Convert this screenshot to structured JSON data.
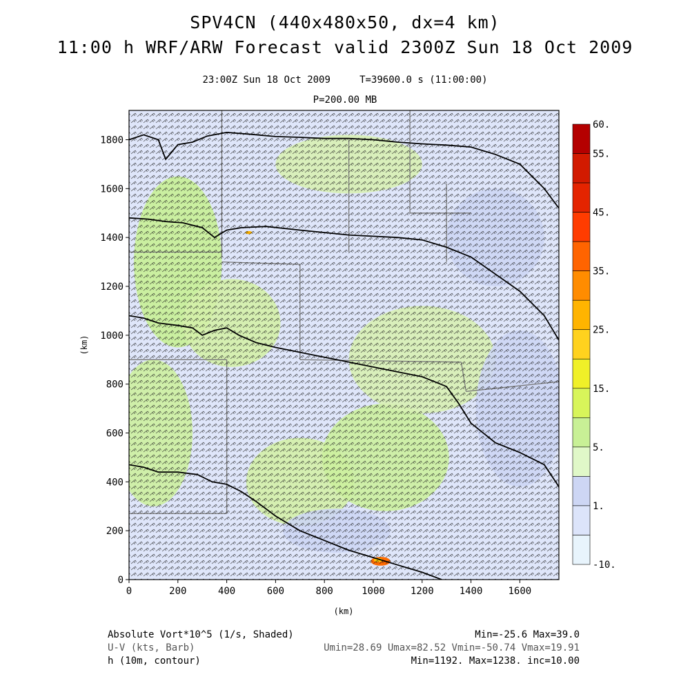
{
  "header": {
    "title_line1": "SPV4CN (440x480x50, dx=4 km)",
    "title_line2": "11:00 h WRF/ARW Forecast valid 2300Z Sun 18 Oct 2009",
    "valid_time": "23:00Z Sun 18 Oct 2009",
    "model_time": "T=39600.0 s (11:00:00)",
    "pressure_level": "P=200.00 MB"
  },
  "map": {
    "x_axis_label": "(km)",
    "y_axis_label": "(km)",
    "x_ticks": [
      "0",
      "200",
      "400",
      "600",
      "800",
      "1000",
      "1200",
      "1400",
      "1600"
    ],
    "y_ticks": [
      "0",
      "200",
      "400",
      "600",
      "800",
      "1000",
      "1200",
      "1400",
      "1600",
      "1800"
    ],
    "x_range_km": [
      0,
      1760
    ],
    "y_range_km": [
      0,
      1920
    ],
    "contours_km": [
      [
        [
          0,
          1800
        ],
        [
          60,
          1820
        ],
        [
          120,
          1800
        ],
        [
          150,
          1720
        ],
        [
          200,
          1780
        ],
        [
          260,
          1790
        ],
        [
          320,
          1815
        ],
        [
          400,
          1830
        ],
        [
          500,
          1822
        ],
        [
          600,
          1813
        ],
        [
          700,
          1810
        ],
        [
          800,
          1805
        ],
        [
          900,
          1805
        ],
        [
          1000,
          1800
        ],
        [
          1100,
          1790
        ],
        [
          1200,
          1783
        ],
        [
          1300,
          1778
        ],
        [
          1400,
          1770
        ],
        [
          1500,
          1740
        ],
        [
          1600,
          1700
        ],
        [
          1700,
          1600
        ],
        [
          1760,
          1520
        ]
      ],
      [
        [
          0,
          1480
        ],
        [
          80,
          1475
        ],
        [
          150,
          1465
        ],
        [
          220,
          1460
        ],
        [
          300,
          1440
        ],
        [
          350,
          1400
        ],
        [
          400,
          1430
        ],
        [
          460,
          1440
        ],
        [
          560,
          1445
        ],
        [
          700,
          1430
        ],
        [
          900,
          1410
        ],
        [
          1100,
          1400
        ],
        [
          1200,
          1390
        ],
        [
          1300,
          1360
        ],
        [
          1400,
          1320
        ],
        [
          1500,
          1250
        ],
        [
          1600,
          1180
        ],
        [
          1700,
          1080
        ],
        [
          1760,
          980
        ]
      ],
      [
        [
          0,
          1080
        ],
        [
          60,
          1070
        ],
        [
          120,
          1050
        ],
        [
          200,
          1040
        ],
        [
          260,
          1030
        ],
        [
          300,
          1000
        ],
        [
          350,
          1020
        ],
        [
          400,
          1030
        ],
        [
          450,
          1000
        ],
        [
          520,
          970
        ],
        [
          600,
          950
        ],
        [
          700,
          930
        ],
        [
          800,
          910
        ],
        [
          900,
          890
        ],
        [
          1000,
          870
        ],
        [
          1100,
          850
        ],
        [
          1200,
          830
        ],
        [
          1300,
          790
        ],
        [
          1350,
          720
        ],
        [
          1400,
          640
        ],
        [
          1500,
          560
        ],
        [
          1600,
          520
        ],
        [
          1700,
          470
        ],
        [
          1760,
          380
        ]
      ],
      [
        [
          0,
          470
        ],
        [
          60,
          460
        ],
        [
          120,
          440
        ],
        [
          200,
          440
        ],
        [
          280,
          430
        ],
        [
          340,
          400
        ],
        [
          400,
          390
        ],
        [
          460,
          360
        ],
        [
          520,
          320
        ],
        [
          600,
          260
        ],
        [
          700,
          200
        ],
        [
          800,
          160
        ],
        [
          900,
          120
        ],
        [
          1000,
          90
        ],
        [
          1100,
          60
        ],
        [
          1200,
          30
        ],
        [
          1280,
          0
        ]
      ]
    ],
    "borders_km": [
      [
        [
          380,
          1920
        ],
        [
          380,
          1320
        ]
      ],
      [
        [
          0,
          1340
        ],
        [
          380,
          1340
        ]
      ],
      [
        [
          380,
          1300
        ],
        [
          700,
          1290
        ]
      ],
      [
        [
          700,
          1290
        ],
        [
          700,
          900
        ]
      ],
      [
        [
          0,
          900
        ],
        [
          400,
          900
        ]
      ],
      [
        [
          400,
          900
        ],
        [
          400,
          270
        ]
      ],
      [
        [
          0,
          270
        ],
        [
          400,
          270
        ]
      ],
      [
        [
          700,
          900
        ],
        [
          1360,
          890
        ]
      ],
      [
        [
          1150,
          1920
        ],
        [
          1150,
          1500
        ]
      ],
      [
        [
          1150,
          1500
        ],
        [
          1400,
          1500
        ]
      ],
      [
        [
          1360,
          890
        ],
        [
          1380,
          770
        ]
      ],
      [
        [
          1380,
          770
        ],
        [
          1760,
          810
        ]
      ],
      [
        [
          1300,
          1620
        ],
        [
          1300,
          1300
        ]
      ],
      [
        [
          900,
          1800
        ],
        [
          900,
          1340
        ]
      ]
    ],
    "shaded_patches_km": [
      {
        "cx": 200,
        "cy": 1300,
        "rx": 180,
        "ry": 350,
        "color": "#c8f096"
      },
      {
        "cx": 420,
        "cy": 1050,
        "rx": 200,
        "ry": 180,
        "color": "#d4f0a8"
      },
      {
        "cx": 100,
        "cy": 600,
        "rx": 160,
        "ry": 300,
        "color": "#cdf0a0"
      },
      {
        "cx": 700,
        "cy": 400,
        "rx": 220,
        "ry": 180,
        "color": "#d4f0a8"
      },
      {
        "cx": 1050,
        "cy": 500,
        "rx": 260,
        "ry": 220,
        "color": "#ccf09e"
      },
      {
        "cx": 1200,
        "cy": 900,
        "rx": 300,
        "ry": 220,
        "color": "#d8f0b4"
      },
      {
        "cx": 900,
        "cy": 1700,
        "rx": 300,
        "ry": 120,
        "color": "#d8f0b4"
      },
      {
        "cx": 1500,
        "cy": 1400,
        "rx": 200,
        "ry": 200,
        "color": "#cdd6f4"
      },
      {
        "cx": 1600,
        "cy": 700,
        "rx": 180,
        "ry": 320,
        "color": "#cdd6f4"
      },
      {
        "cx": 850,
        "cy": 200,
        "rx": 220,
        "ry": 90,
        "color": "#cdd6f4"
      }
    ],
    "hotspots_km": [
      {
        "x": 1030,
        "y": 75,
        "r": 40,
        "color": "#ff6a00"
      },
      {
        "x": 1020,
        "y": 80,
        "r": 18,
        "color": "#ffc800"
      },
      {
        "x": 490,
        "y": 1420,
        "r": 14,
        "color": "#ffb400"
      }
    ]
  },
  "colorbar": {
    "labels": [
      "60.",
      "55.",
      "45.",
      "35.",
      "25.",
      "15.",
      "5.",
      "1.",
      "-10."
    ],
    "colors": [
      "#b40000",
      "#d21a00",
      "#e42400",
      "#ff3c00",
      "#ff6400",
      "#ff8c00",
      "#ffb400",
      "#ffd21e",
      "#f0f028",
      "#d8f55a",
      "#c8f096",
      "#e0f8c8",
      "#cdd6f4",
      "#dce4fa",
      "#e8f4fc"
    ]
  },
  "footer": {
    "field1_name": "Absolute Vort*10^5 (1/s, Shaded)",
    "field1_stats": "Min=-25.6 Max=39.0",
    "field2_name": "U-V (kts, Barb)",
    "field2_stats": "Umin=28.69 Umax=82.52 Vmin=-50.74 Vmax=19.91",
    "field3_name": "h (10m, contour)",
    "field3_stats": "Min=1192. Max=1238. inc=10.00"
  }
}
